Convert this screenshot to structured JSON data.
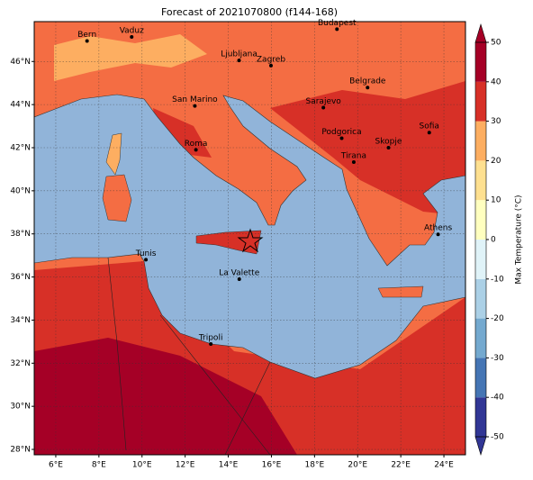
{
  "title": "Forecast of 2021070800 (f144-168)",
  "map": {
    "xlim": [
      5,
      25
    ],
    "ylim": [
      27.75,
      47.85
    ],
    "xticks": [
      {
        "value": 6,
        "label": "6°E"
      },
      {
        "value": 8,
        "label": "8°E"
      },
      {
        "value": 10,
        "label": "10°E"
      },
      {
        "value": 12,
        "label": "12°E"
      },
      {
        "value": 14,
        "label": "14°E"
      },
      {
        "value": 16,
        "label": "16°E"
      },
      {
        "value": 18,
        "label": "18°E"
      },
      {
        "value": 20,
        "label": "20°E"
      },
      {
        "value": 22,
        "label": "22°E"
      },
      {
        "value": 24,
        "label": "24°E"
      }
    ],
    "yticks": [
      {
        "value": 28,
        "label": "28°N"
      },
      {
        "value": 30,
        "label": "30°N"
      },
      {
        "value": 32,
        "label": "32°N"
      },
      {
        "value": 34,
        "label": "34°N"
      },
      {
        "value": 36,
        "label": "36°N"
      },
      {
        "value": 38,
        "label": "38°N"
      },
      {
        "value": 40,
        "label": "40°N"
      },
      {
        "value": 42,
        "label": "42°N"
      },
      {
        "value": 44,
        "label": "44°N"
      },
      {
        "value": 46,
        "label": "46°N"
      }
    ],
    "grid": true,
    "cities": [
      {
        "name": "Bern",
        "lon": 7.45,
        "lat": 46.95
      },
      {
        "name": "Vaduz",
        "lon": 9.52,
        "lat": 47.14
      },
      {
        "name": "Budapest",
        "lon": 19.04,
        "lat": 47.5
      },
      {
        "name": "Ljubljana",
        "lon": 14.5,
        "lat": 46.05
      },
      {
        "name": "Zagreb",
        "lon": 15.98,
        "lat": 45.81
      },
      {
        "name": "Belgrade",
        "lon": 20.46,
        "lat": 44.79
      },
      {
        "name": "San Marino",
        "lon": 12.45,
        "lat": 43.94
      },
      {
        "name": "Sarajevo",
        "lon": 18.41,
        "lat": 43.86
      },
      {
        "name": "Podgorica",
        "lon": 19.26,
        "lat": 42.44
      },
      {
        "name": "Sofia",
        "lon": 23.32,
        "lat": 42.7
      },
      {
        "name": "Skopje",
        "lon": 21.43,
        "lat": 42.0
      },
      {
        "name": "Roma",
        "lon": 12.5,
        "lat": 41.9
      },
      {
        "name": "Tirana",
        "lon": 19.82,
        "lat": 41.33
      },
      {
        "name": "Athens",
        "lon": 23.73,
        "lat": 37.98
      },
      {
        "name": "Tunis",
        "lon": 10.18,
        "lat": 36.8
      },
      {
        "name": "La Valette",
        "lon": 14.51,
        "lat": 35.9
      },
      {
        "name": "Tripoli",
        "lon": 13.19,
        "lat": 32.89
      }
    ]
  },
  "colorbar": {
    "label": "Max Temperature (°C)",
    "lim": [
      -50,
      50
    ],
    "ticks": [
      -50,
      -40,
      -30,
      -20,
      -10,
      0,
      10,
      20,
      30,
      40,
      50
    ],
    "colors": [
      "#313695",
      "#4575b4",
      "#74a9cf",
      "#abd0e6",
      "#e0f3f8",
      "#ffffbf",
      "#fee090",
      "#fdae61",
      "#d73027",
      "#a50026"
    ]
  }
}
